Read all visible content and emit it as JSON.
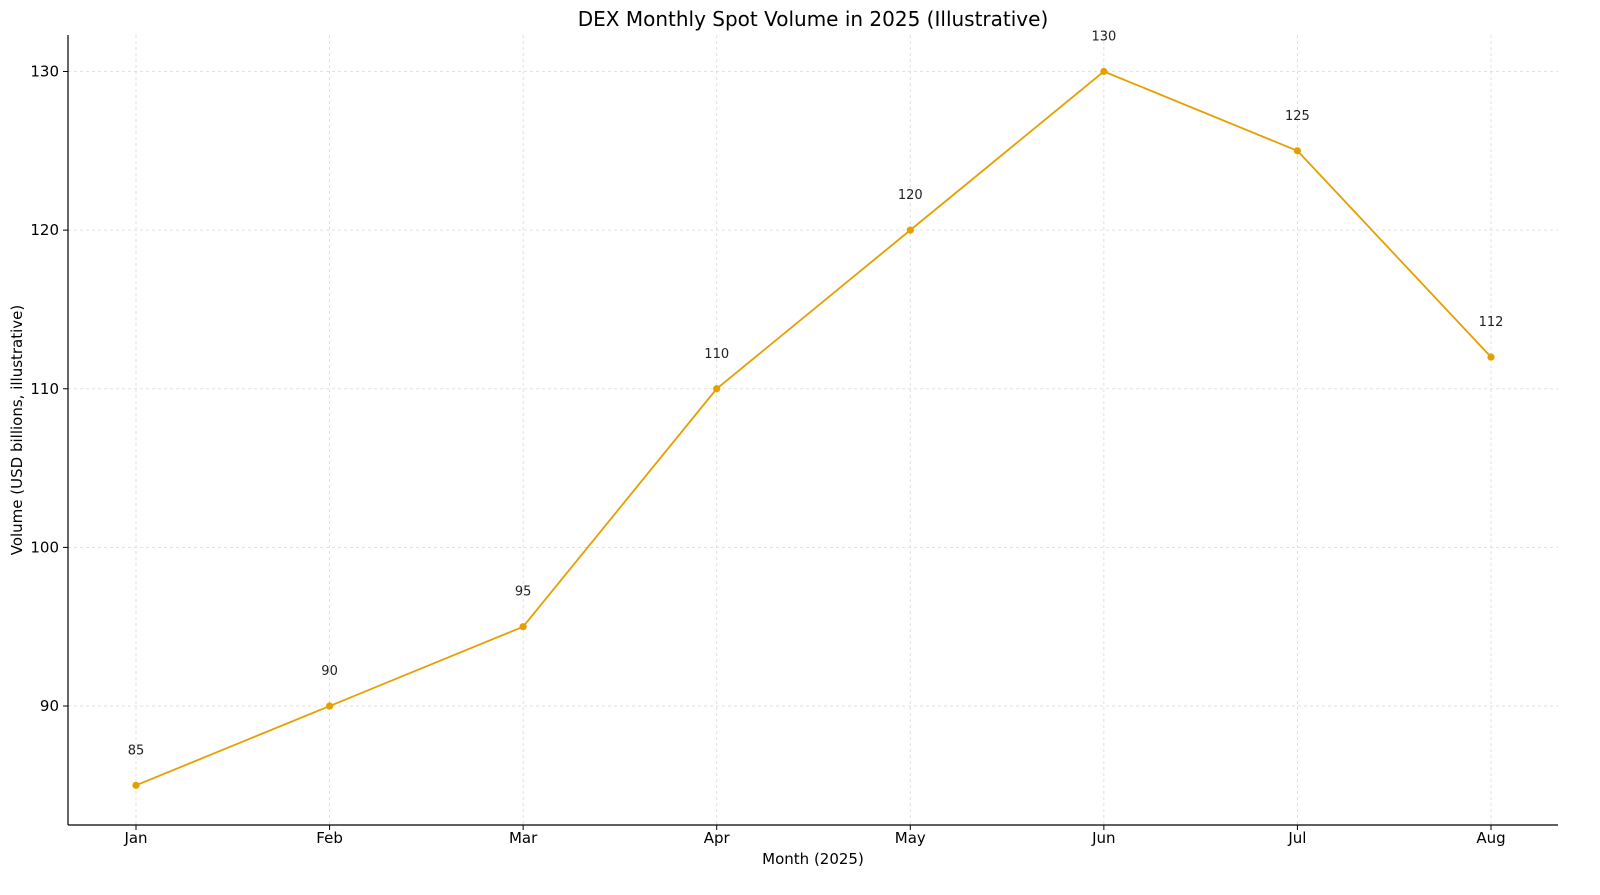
{
  "chart_data": {
    "type": "line",
    "title": "DEX Monthly Spot Volume in 2025 (Illustrative)",
    "xlabel": "Month (2025)",
    "ylabel": "Volume (USD billions, illustrative)",
    "categories": [
      "Jan",
      "Feb",
      "Mar",
      "Apr",
      "May",
      "Jun",
      "Jul",
      "Aug"
    ],
    "series": [
      {
        "values": [
          85,
          90,
          95,
          110,
          120,
          130,
          125,
          112
        ],
        "color": "#E69F00"
      }
    ],
    "data_labels": [
      "85",
      "90",
      "95",
      "110",
      "120",
      "130",
      "125",
      "112"
    ],
    "yticks": [
      90,
      100,
      110,
      120,
      130
    ],
    "ytick_labels": [
      "90",
      "100",
      "110",
      "120",
      "130"
    ],
    "ylim": [
      82.5,
      132.3
    ],
    "grid": true,
    "legend": "none"
  }
}
